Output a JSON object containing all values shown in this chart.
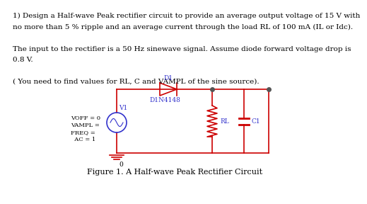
{
  "title": "Figure 1. A Half-wave Peak Rectifier Circuit",
  "text_lines": [
    "1) Design a Half-wave Peak rectifier circuit to provide an average output voltage of 15 V with",
    "no more than 5 % ripple and an average current through the load RL of 100 mA (IL or Idc).",
    "",
    "The input to the rectifier is a 50 Hz sinewave signal. Assume diode forward voltage drop is",
    "0.8 V.",
    "",
    "( You need to find values for RL, C and VAMPL of the sine source)."
  ],
  "circuit_color": "#CC0000",
  "blue_color": "#3333CC",
  "bg_color": "#FFFFFF",
  "text_color": "#000000",
  "caption_color": "#000000"
}
